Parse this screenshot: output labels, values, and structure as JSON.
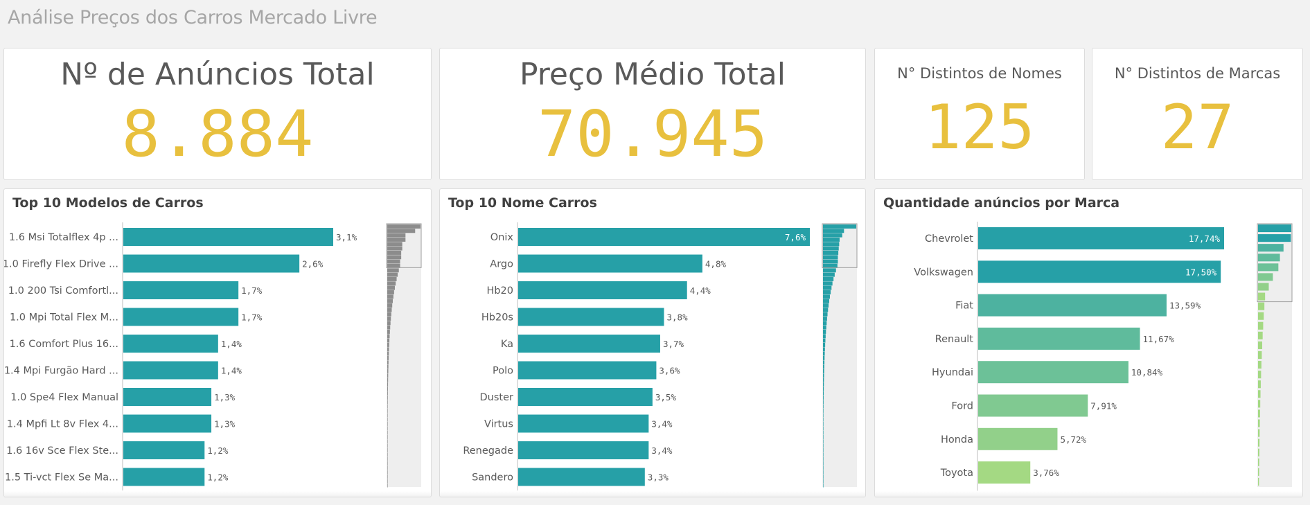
{
  "app": {
    "title": "Análise Preços dos Carros Mercado Livre"
  },
  "kpis": [
    {
      "title": "Nº de Anúncios Total",
      "value": "8.884"
    },
    {
      "title": "Preço Médio Total",
      "value": "70.945"
    },
    {
      "title": "N° Distintos de Nomes",
      "value": "125"
    },
    {
      "title": "N° Distintos de Marcas",
      "value": "27"
    }
  ],
  "colors": {
    "accent": "#e8c03e",
    "bar": "#26a0a7",
    "background": "#f2f2f2"
  },
  "chart_data": [
    {
      "type": "bar",
      "orientation": "horizontal",
      "title": "Top 10 Modelos de Carros",
      "categories": [
        "1.6 Msi Totalflex 4p ...",
        "1.0 Firefly Flex Drive ...",
        "1.0 200 Tsi Comfortl...",
        "1.0 Mpi Total Flex M...",
        "1.6 Comfort Plus 16...",
        "1.4 Mpi Furgão Hard ...",
        "1.0 Spe4 Flex Manual",
        "1.4 Mpfi Lt 8v Flex 4...",
        "1.6 16v Sce Flex Ste...",
        "1.5 Ti-vct Flex Se Ma..."
      ],
      "values": [
        3.1,
        2.6,
        1.7,
        1.7,
        1.4,
        1.4,
        1.3,
        1.3,
        1.2,
        1.2
      ],
      "value_labels": [
        "3,1%",
        "2,6%",
        "1,7%",
        "1,7%",
        "1,4%",
        "1,4%",
        "1,3%",
        "1,3%",
        "1,2%",
        "1,2%"
      ],
      "xlim": [
        0,
        3.1
      ]
    },
    {
      "type": "bar",
      "orientation": "horizontal",
      "title": "Top 10 Nome Carros",
      "categories": [
        "Onix",
        "Argo",
        "Hb20",
        "Hb20s",
        "Ka",
        "Polo",
        "Duster",
        "Virtus",
        "Renegade",
        "Sandero"
      ],
      "values": [
        7.6,
        4.8,
        4.4,
        3.8,
        3.7,
        3.6,
        3.5,
        3.4,
        3.4,
        3.3
      ],
      "value_labels": [
        "7,6%",
        "4,8%",
        "4,4%",
        "3,8%",
        "3,7%",
        "3,6%",
        "3,5%",
        "3,4%",
        "3,4%",
        "3,3%"
      ],
      "xlim": [
        0,
        7.6
      ]
    },
    {
      "type": "bar",
      "orientation": "horizontal",
      "title": "Quantidade anúncios por Marca",
      "categories": [
        "Chevrolet",
        "Volkswagen",
        "Fiat",
        "Renault",
        "Hyundai",
        "Ford",
        "Honda",
        "Toyota"
      ],
      "values": [
        17.74,
        17.5,
        13.59,
        11.67,
        10.84,
        7.91,
        5.72,
        3.76
      ],
      "value_labels": [
        "17,74%",
        "17,50%",
        "13,59%",
        "11,67%",
        "10,84%",
        "7,91%",
        "5,72%",
        "3,76%"
      ],
      "bar_colors": [
        "#26a0a7",
        "#26a0a7",
        "#4db2a0",
        "#5fbb9c",
        "#6cc198",
        "#80c991",
        "#92d08a",
        "#a4d983"
      ],
      "xlim": [
        0,
        17.74
      ]
    }
  ]
}
